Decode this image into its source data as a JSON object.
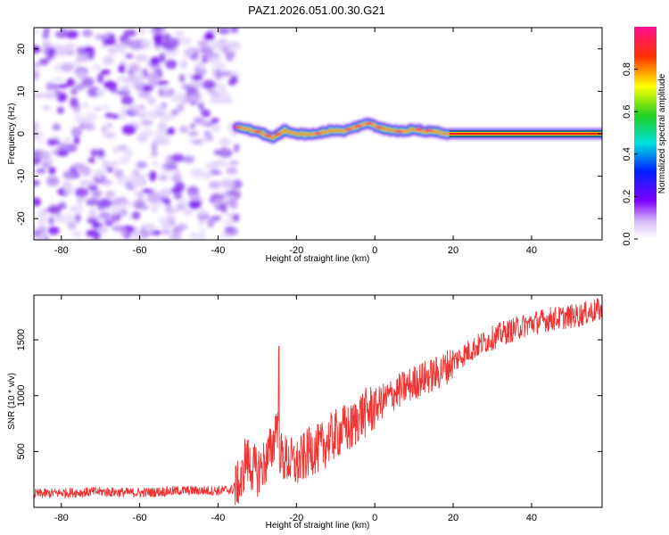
{
  "title": "PAZ1.2026.051.00.30.G21",
  "chart_data": [
    {
      "type": "heatmap",
      "name": "spectrogram",
      "xlabel": "Height of straight line (km)",
      "ylabel": "Frequency (Hz)",
      "xlim": [
        -87,
        58
      ],
      "ylim": [
        -25,
        25
      ],
      "xticks": [
        -80,
        -60,
        -40,
        -20,
        0,
        20,
        40
      ],
      "yticks": [
        20,
        10,
        0,
        -10,
        -20
      ],
      "noise_region_x": [
        -87,
        -35
      ],
      "signal_track": {
        "x": [
          -35,
          -32,
          -29,
          -26,
          -23,
          -20,
          -17,
          -14,
          -11,
          -8,
          -5,
          -2,
          1,
          4,
          7,
          10,
          13,
          16,
          19,
          25,
          30,
          40,
          50,
          58
        ],
        "freq": [
          1.5,
          1.0,
          0.2,
          -1.0,
          0.8,
          0.0,
          -0.2,
          0.2,
          0.8,
          0.6,
          1.5,
          2.5,
          1.5,
          0.8,
          0.6,
          1.0,
          0.6,
          0.4,
          0.0,
          0.0,
          0.0,
          0.0,
          0.0,
          0.0
        ]
      },
      "colorbar": {
        "label": "Normalized spectral amplitude",
        "range": [
          0.0,
          1.0
        ],
        "ticks": [
          "0.0",
          "0.2",
          "0.4",
          "0.6",
          "0.8"
        ]
      }
    },
    {
      "type": "line",
      "name": "snr",
      "xlabel": "Height of straight line (km)",
      "ylabel": "SNR (10 * v/v)",
      "xlim": [
        -87,
        58
      ],
      "ylim": [
        0,
        1900
      ],
      "xticks": [
        -80,
        -60,
        -40,
        -20,
        0,
        20,
        40
      ],
      "yticks": [
        500,
        1000,
        1500
      ],
      "color": "#ee3333",
      "series": [
        {
          "name": "SNR",
          "x": [
            -87,
            -80,
            -70,
            -60,
            -50,
            -40,
            -36,
            -34,
            -33,
            -32,
            -30,
            -28,
            -26,
            -25,
            -24,
            -22,
            -20,
            -18,
            -16,
            -14,
            -12,
            -10,
            -8,
            -6,
            -4,
            -2,
            0,
            4,
            8,
            12,
            16,
            20,
            24,
            28,
            32,
            36,
            40,
            44,
            48,
            52,
            56,
            58
          ],
          "y": [
            120,
            130,
            140,
            130,
            150,
            150,
            160,
            220,
            450,
            380,
            320,
            400,
            550,
            800,
            450,
            420,
            380,
            450,
            520,
            520,
            600,
            650,
            700,
            700,
            820,
            850,
            900,
            1000,
            1080,
            1150,
            1200,
            1300,
            1400,
            1480,
            1550,
            1600,
            1650,
            1680,
            1700,
            1720,
            1760,
            1770
          ]
        }
      ]
    }
  ]
}
